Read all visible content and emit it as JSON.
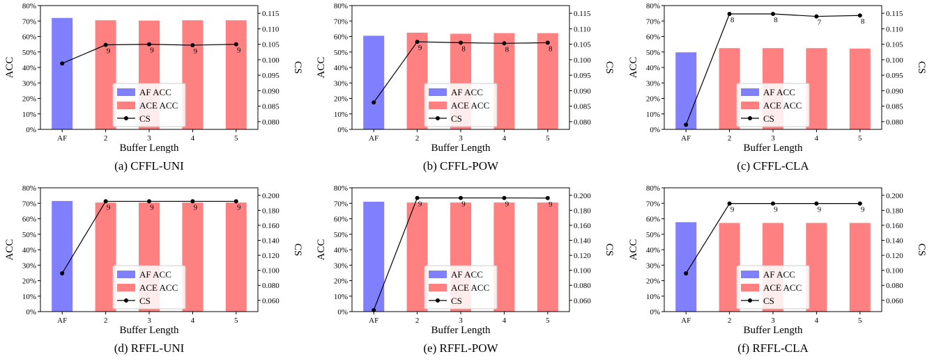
{
  "colors": {
    "af": "#8080ff",
    "ace": "#ff8080",
    "cs": "#000000"
  },
  "chart_data": [
    {
      "type": "bar",
      "caption": "(a) CFFL-UNI",
      "categories": [
        "AF",
        "2",
        "3",
        "4",
        "5"
      ],
      "xlabel": "Buffer Length",
      "ylabel": "ACC",
      "ylabel_right": "CS",
      "ylim": [
        0,
        80
      ],
      "ylim_right": [
        0.0775,
        0.1175
      ],
      "yticks_right": [
        "0.080",
        "0.085",
        "0.090",
        "0.095",
        "0.100",
        "0.105",
        "0.110",
        "0.115"
      ],
      "series": [
        {
          "name": "AF ACC",
          "values": [
            72,
            null,
            null,
            null,
            null
          ]
        },
        {
          "name": "ACE ACC",
          "values": [
            null,
            70.5,
            70.3,
            70.5,
            70.5
          ]
        },
        {
          "name": "CS",
          "values": [
            0.0988,
            0.1048,
            0.105,
            0.1047,
            0.105
          ],
          "labels": [
            "",
            "9",
            "9",
            "9",
            "9"
          ]
        }
      ],
      "legend": "lower-center"
    },
    {
      "type": "bar",
      "caption": "(b) CFFL-POW",
      "categories": [
        "AF",
        "2",
        "3",
        "4",
        "5"
      ],
      "xlabel": "Buffer Length",
      "ylabel": "ACC",
      "ylabel_right": "CS",
      "ylim": [
        0,
        80
      ],
      "ylim_right": [
        0.0775,
        0.1175
      ],
      "yticks_right": [
        "0.080",
        "0.085",
        "0.090",
        "0.095",
        "0.100",
        "0.105",
        "0.110",
        "0.115"
      ],
      "series": [
        {
          "name": "AF ACC",
          "values": [
            60.5,
            null,
            null,
            null,
            null
          ]
        },
        {
          "name": "ACE ACC",
          "values": [
            null,
            62.5,
            61.8,
            62.2,
            62.2
          ]
        },
        {
          "name": "CS",
          "values": [
            0.0862,
            0.1058,
            0.1055,
            0.1053,
            0.1055
          ],
          "labels": [
            "",
            "9",
            "8",
            "8",
            "8"
          ]
        }
      ],
      "legend": "lower-center"
    },
    {
      "type": "bar",
      "caption": "(c) CFFL-CLA",
      "categories": [
        "AF",
        "2",
        "3",
        "4",
        "5"
      ],
      "xlabel": "Buffer Length",
      "ylabel": "ACC",
      "ylabel_right": "CS",
      "ylim": [
        0,
        80
      ],
      "ylim_right": [
        0.0775,
        0.1175
      ],
      "yticks_right": [
        "0.080",
        "0.085",
        "0.090",
        "0.095",
        "0.100",
        "0.105",
        "0.110",
        "0.115"
      ],
      "series": [
        {
          "name": "AF ACC",
          "values": [
            49.8,
            null,
            null,
            null,
            null
          ]
        },
        {
          "name": "ACE ACC",
          "values": [
            null,
            52.5,
            52.5,
            52.5,
            52.2
          ]
        },
        {
          "name": "CS",
          "values": [
            0.079,
            0.1148,
            0.1148,
            0.114,
            0.1143
          ],
          "labels": [
            "",
            "8",
            "8",
            "7",
            "8"
          ]
        }
      ],
      "legend": "lower-center"
    },
    {
      "type": "bar",
      "caption": "(d) RFFL-UNI",
      "categories": [
        "AF",
        "2",
        "3",
        "4",
        "5"
      ],
      "xlabel": "Buffer Length",
      "ylabel": "ACC",
      "ylabel_right": "CS",
      "ylim": [
        0,
        80
      ],
      "ylim_right": [
        0.045,
        0.21
      ],
      "yticks_right": [
        "0.060",
        "0.080",
        "0.100",
        "0.120",
        "0.140",
        "0.160",
        "0.180",
        "0.200"
      ],
      "series": [
        {
          "name": "AF ACC",
          "values": [
            71.5,
            null,
            null,
            null,
            null
          ]
        },
        {
          "name": "ACE ACC",
          "values": [
            null,
            70.5,
            70.5,
            70.5,
            70.5
          ]
        },
        {
          "name": "CS",
          "values": [
            0.096,
            0.192,
            0.192,
            0.192,
            0.192
          ],
          "labels": [
            "",
            "9",
            "9",
            "9",
            "9"
          ]
        }
      ],
      "legend": "lower-center"
    },
    {
      "type": "bar",
      "caption": "(e) RFFL-POW",
      "categories": [
        "AF",
        "2",
        "3",
        "4",
        "5"
      ],
      "xlabel": "Buffer Length",
      "ylabel": "ACC",
      "ylabel_right": "CS",
      "ylim": [
        0,
        80
      ],
      "ylim_right": [
        0.045,
        0.21
      ],
      "yticks_right": [
        "0.060",
        "0.080",
        "0.100",
        "0.120",
        "0.140",
        "0.160",
        "0.180",
        "0.200"
      ],
      "series": [
        {
          "name": "AF ACC",
          "values": [
            71,
            null,
            null,
            null,
            null
          ]
        },
        {
          "name": "ACE ACC",
          "values": [
            null,
            70.5,
            70.5,
            70.5,
            70.5
          ]
        },
        {
          "name": "CS",
          "values": [
            0.047,
            0.1965,
            0.1965,
            0.1965,
            0.1963
          ],
          "labels": [
            "",
            "9",
            "9",
            "9",
            "9"
          ]
        }
      ],
      "legend": "lower-center"
    },
    {
      "type": "bar",
      "caption": "(f) RFFL-CLA",
      "categories": [
        "AF",
        "2",
        "3",
        "4",
        "5"
      ],
      "xlabel": "Buffer Length",
      "ylabel": "ACC",
      "ylabel_right": "CS",
      "ylim": [
        0,
        80
      ],
      "ylim_right": [
        0.045,
        0.21
      ],
      "yticks_right": [
        "0.060",
        "0.080",
        "0.100",
        "0.120",
        "0.140",
        "0.160",
        "0.180",
        "0.200"
      ],
      "series": [
        {
          "name": "AF ACC",
          "values": [
            57.8,
            null,
            null,
            null,
            null
          ]
        },
        {
          "name": "ACE ACC",
          "values": [
            null,
            57.3,
            57.3,
            57.3,
            57.3
          ]
        },
        {
          "name": "CS",
          "values": [
            0.096,
            0.189,
            0.189,
            0.189,
            0.189
          ],
          "labels": [
            "",
            "9",
            "9",
            "9",
            "9"
          ]
        }
      ],
      "legend": "lower-center"
    }
  ]
}
